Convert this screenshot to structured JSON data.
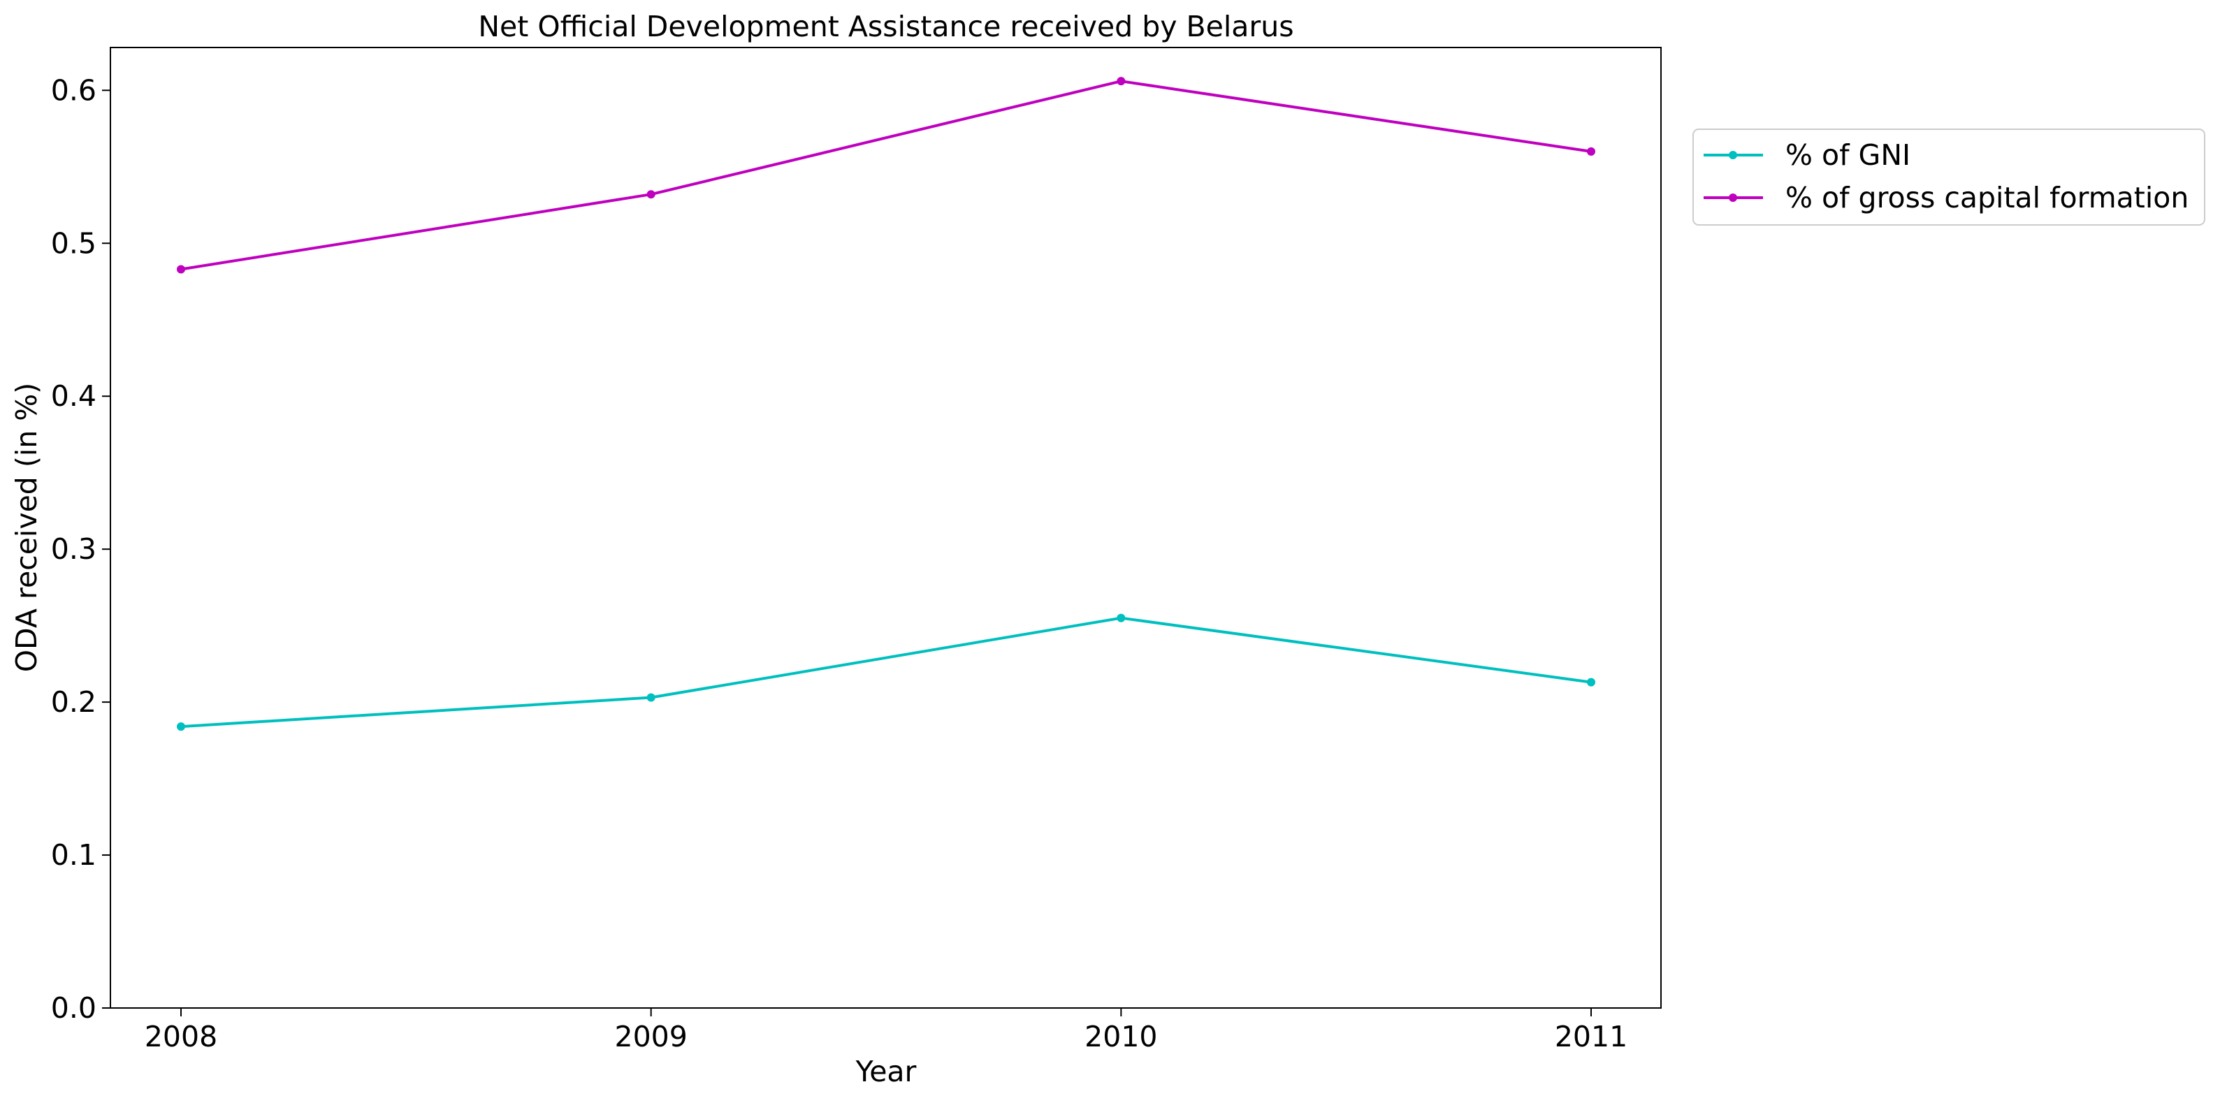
{
  "chart_data": {
    "type": "line",
    "title": "Net Official Development Assistance received by Belarus",
    "xlabel": "Year",
    "ylabel": "ODA received (in %)",
    "x": [
      "2008",
      "2009",
      "2010",
      "2011"
    ],
    "ylim": [
      0,
      0.628
    ],
    "yticks": [
      "0.0",
      "0.1",
      "0.2",
      "0.3",
      "0.4",
      "0.5",
      "0.6"
    ],
    "grid": false,
    "legend_position": "outside right, top",
    "series": [
      {
        "name": "% of GNI",
        "color": "#00bfbf",
        "values": [
          0.184,
          0.203,
          0.255,
          0.213
        ]
      },
      {
        "name": "% of gross capital formation",
        "color": "#bf00bf",
        "values": [
          0.483,
          0.532,
          0.606,
          0.56
        ]
      }
    ]
  }
}
